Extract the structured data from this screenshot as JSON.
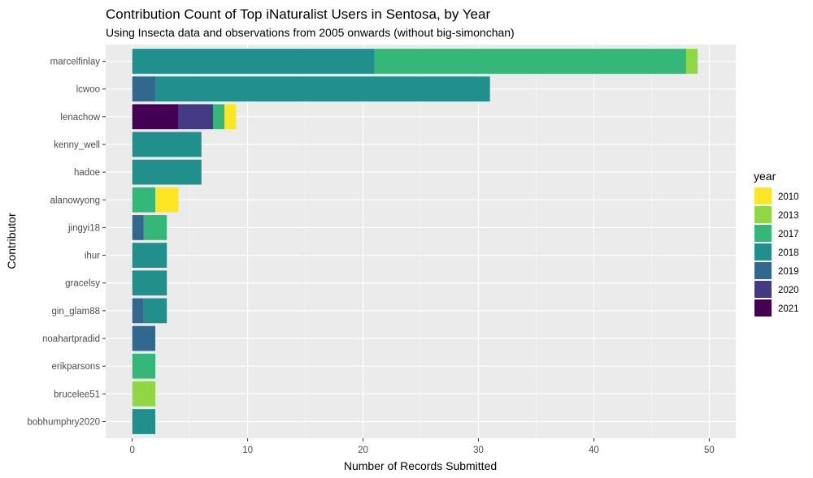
{
  "chart_data": {
    "type": "bar",
    "orientation": "horizontal",
    "stacked": true,
    "title": "Contribution Count of Top iNaturalist Users in Sentosa, by Year",
    "subtitle": "Using Insecta data and observations from 2005 onwards (without big-simonchan)",
    "xlabel": "Number of Records Submitted",
    "ylabel": "Contributor",
    "xlim": [
      -2.3,
      52.3
    ],
    "xticks": [
      0,
      10,
      20,
      30,
      40,
      50
    ],
    "grid": true,
    "legend": {
      "title": "year",
      "position": "right",
      "entries": [
        {
          "label": "2010",
          "color": "#FDE725"
        },
        {
          "label": "2013",
          "color": "#8FD744"
        },
        {
          "label": "2017",
          "color": "#35B779"
        },
        {
          "label": "2018",
          "color": "#21908C"
        },
        {
          "label": "2019",
          "color": "#31688E"
        },
        {
          "label": "2020",
          "color": "#443A83"
        },
        {
          "label": "2021",
          "color": "#440154"
        }
      ]
    },
    "stack_order": [
      "2021",
      "2020",
      "2019",
      "2018",
      "2017",
      "2013",
      "2010"
    ],
    "categories": [
      "marcelfinlay",
      "lcwoo",
      "lenachow",
      "kenny_well",
      "hadoe",
      "alanowyong",
      "jingyi18",
      "ihur",
      "gracelsy",
      "gin_glam88",
      "noahartpradid",
      "erikparsons",
      "brucelee51",
      "bobhumphry2020"
    ],
    "series": [
      {
        "name": "2021",
        "values": [
          0,
          0,
          4,
          0,
          0,
          0,
          0,
          0,
          0,
          0,
          0,
          0,
          0,
          0
        ]
      },
      {
        "name": "2020",
        "values": [
          0,
          0,
          3,
          0,
          0,
          0,
          0,
          0,
          0,
          0,
          0,
          0,
          0,
          0
        ]
      },
      {
        "name": "2019",
        "values": [
          0,
          2,
          0,
          0,
          0,
          0,
          1,
          0,
          0,
          1,
          2,
          0,
          0,
          0
        ]
      },
      {
        "name": "2018",
        "values": [
          21,
          29,
          0,
          6,
          6,
          0,
          0,
          3,
          3,
          2,
          0,
          0,
          0,
          2
        ]
      },
      {
        "name": "2017",
        "values": [
          27,
          0,
          1,
          0,
          0,
          2,
          2,
          0,
          0,
          0,
          0,
          2,
          0,
          0
        ]
      },
      {
        "name": "2013",
        "values": [
          1,
          0,
          0,
          0,
          0,
          0,
          0,
          0,
          0,
          0,
          0,
          0,
          2,
          0
        ]
      },
      {
        "name": "2010",
        "values": [
          0,
          0,
          1,
          0,
          0,
          2,
          0,
          0,
          0,
          0,
          0,
          0,
          0,
          0
        ]
      }
    ]
  }
}
